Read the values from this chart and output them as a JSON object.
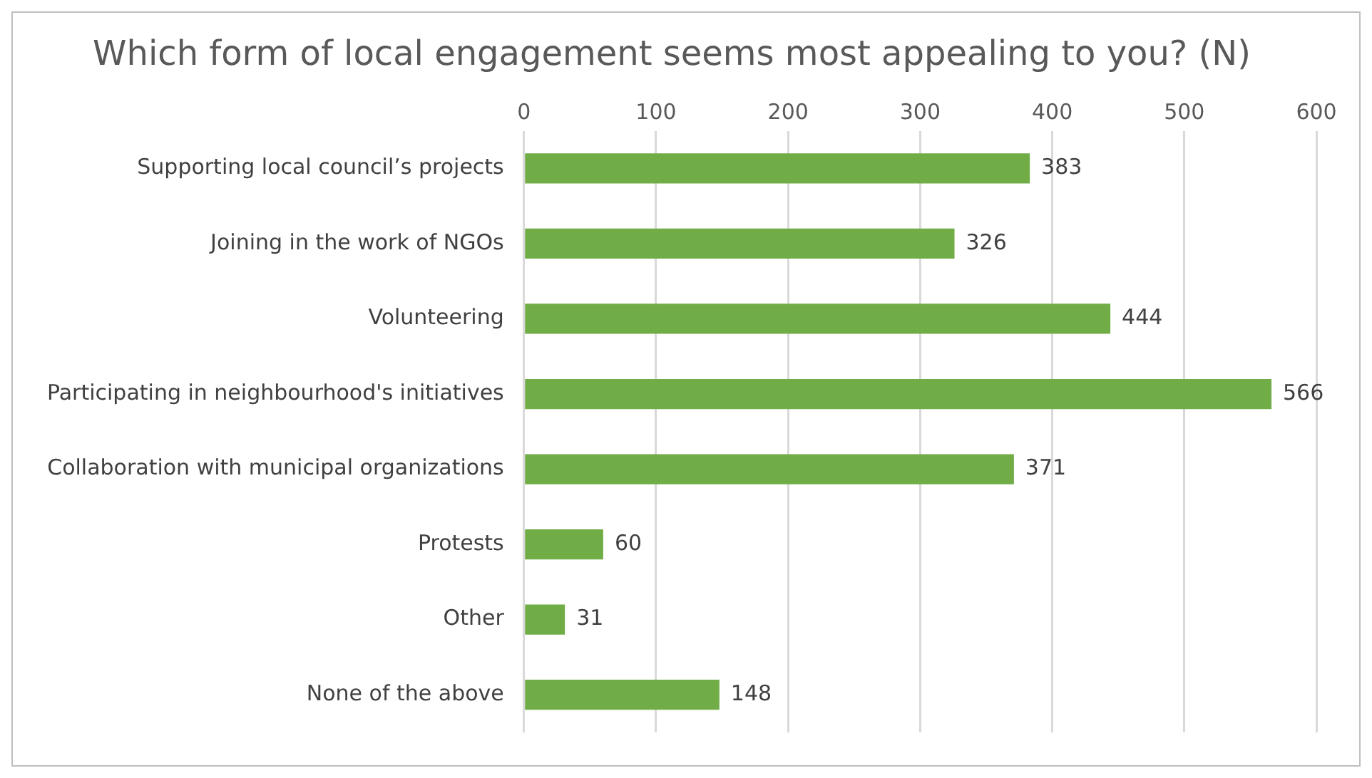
{
  "chart_data": {
    "type": "bar",
    "orientation": "horizontal",
    "title": "Which form of local engagement seems most appealing to you? (N)",
    "categories": [
      "Supporting local council’s projects",
      "Joining in the work of NGOs",
      "Volunteering",
      "Participating in neighbourhood's initiatives",
      "Collaboration with municipal organizations",
      "Protests",
      "Other",
      "None of the above"
    ],
    "values": [
      383,
      326,
      444,
      566,
      371,
      60,
      31,
      148
    ],
    "color": "#70ad47",
    "xlim": [
      0,
      600
    ],
    "xticks": [
      0,
      100,
      200,
      300,
      400,
      500,
      600
    ],
    "grid": "x",
    "data_labels": true,
    "legend": false
  }
}
